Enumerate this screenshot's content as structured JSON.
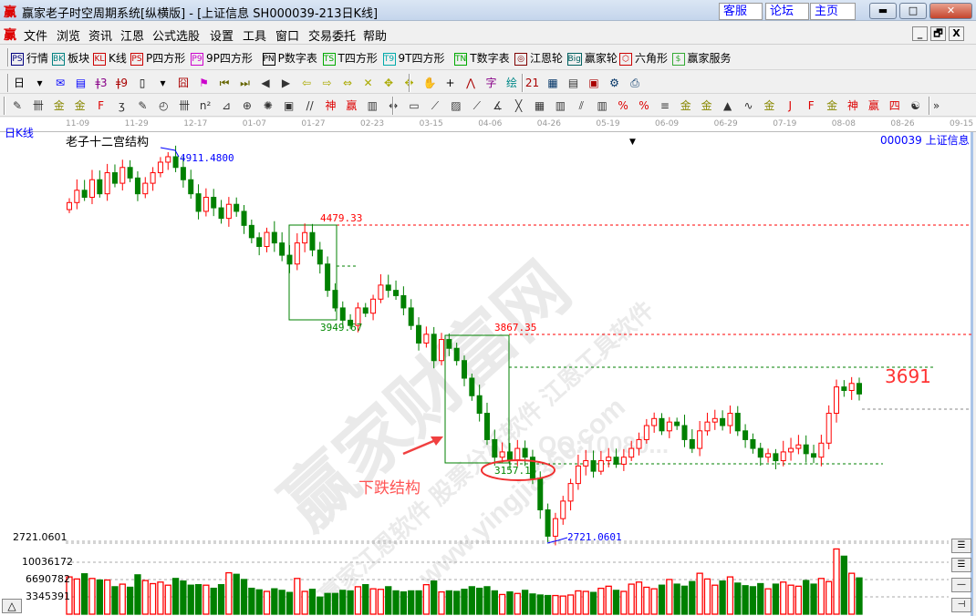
{
  "window": {
    "logo": "赢",
    "title": "赢家老子时空周期系统[纵横版] - [上证信息  SH000039-213日K线]",
    "links": [
      "客服",
      "论坛",
      "主页"
    ],
    "controls": [
      "minimize",
      "maximize",
      "close"
    ]
  },
  "menu": {
    "logo": "赢",
    "items": [
      "文件",
      "浏览",
      "资讯",
      "江恩",
      "公式选股",
      "设置",
      "工具",
      "窗口",
      "交易委托",
      "帮助"
    ],
    "mdi": [
      "_",
      "🗗",
      "X"
    ]
  },
  "toolbar1": [
    {
      "icon": "PS",
      "label": "行情",
      "color": "#000080"
    },
    {
      "icon": "BK",
      "label": "板块",
      "color": "#008080"
    },
    {
      "icon": "KL",
      "label": "K线",
      "color": "#cc0000"
    },
    {
      "icon": "PS",
      "label": "P四方形",
      "color": "#cc0000"
    },
    {
      "icon": "P9",
      "label": "9P四方形",
      "color": "#cc00cc"
    },
    {
      "icon": "PN",
      "label": "P数字表",
      "color": "#000000"
    },
    {
      "icon": "TS",
      "label": "T四方形",
      "color": "#00aa00"
    },
    {
      "icon": "T9",
      "label": "9T四方形",
      "color": "#00aaaa"
    },
    {
      "icon": "TN",
      "label": "T数字表",
      "color": "#00aa00"
    },
    {
      "icon": "◎",
      "label": "江恩轮",
      "color": "#800000"
    },
    {
      "icon": "Big",
      "label": "赢家轮",
      "color": "#006060"
    },
    {
      "icon": "⬡",
      "label": "六角形",
      "color": "#cc0000"
    },
    {
      "icon": "$",
      "label": "赢家服务",
      "color": "#33aa33"
    }
  ],
  "toolbar2_icons": [
    "日",
    "▾",
    "✉",
    "▤",
    "ǂ3",
    "ǂ9",
    "▯",
    "▾",
    "囧",
    "⚑",
    "⏮",
    "⏭",
    "◀",
    "▶",
    "⇦",
    "⇨",
    "⇔",
    "✕",
    "✥",
    "✥",
    "✋",
    "+",
    "⋀",
    "字",
    "绘",
    "21",
    "▦",
    "▤",
    "▣",
    "⚙",
    "⎙"
  ],
  "toolbar3_icons": [
    "✎",
    "卌",
    "金",
    "金",
    "F",
    "ʒ",
    "✎",
    "◴",
    "卌",
    "n²",
    "⊿",
    "⊕",
    "✺",
    "▣",
    "//",
    "神",
    "赢",
    "▥",
    "↔",
    "▭",
    "⟋",
    "▨",
    "⟋",
    "∡",
    "╳",
    "▦",
    "▥",
    "⫽",
    "▥",
    "%",
    "%",
    "≡",
    "金",
    "金",
    "▲",
    "∿",
    "金",
    "J",
    "F",
    "金",
    "神",
    "赢",
    "四",
    "☯",
    "»"
  ],
  "date_axis": [
    "11-09",
    "11-29",
    "12-17",
    "01-07",
    "01-27",
    "02-23",
    "03-15",
    "04-06",
    "04-26",
    "05-19",
    "06-09",
    "06-29",
    "07-19",
    "08-08",
    "08-26",
    "09-15"
  ],
  "chart_header": {
    "period": "日K线",
    "indicator": "老子十二宫结构",
    "marker": "▼",
    "symbol": "000039  上证信息"
  },
  "annotations": {
    "high": "4911.4800",
    "box1_top": "4479.33",
    "box1_bottom": "3949.67",
    "box2_top": "3867.35",
    "box2_bottom": "3157.15",
    "low": "2721.0601",
    "target": "3691",
    "label": "下跌结构"
  },
  "watermark": {
    "main": "赢家财富网",
    "line1": "赢家江恩软件 股票分析软件 江恩工具软件",
    "line2": "www.yingjia360.com",
    "line3": "QQ:10080..."
  },
  "volume_axis": {
    "top": "2721.0601",
    "ticks": [
      "10036172",
      "6690782",
      "3345391"
    ]
  },
  "colors": {
    "up": "#ff0000",
    "down": "#008000",
    "box": "#008000",
    "level_red": "#ff0000",
    "level_green": "#008000",
    "low_line": "#0000ff",
    "target": "#ff3333"
  },
  "side_buttons": [
    "☰",
    "☰",
    "—",
    "⊣"
  ],
  "chart_data": {
    "type": "candlestick",
    "title": "",
    "price_range": [
      2721.06,
      4911.48
    ],
    "closes": [
      4650,
      4720,
      4680,
      4780,
      4700,
      4820,
      4760,
      4850,
      4790,
      4700,
      4760,
      4820,
      4880,
      4911,
      4850,
      4780,
      4700,
      4600,
      4680,
      4620,
      4560,
      4640,
      4600,
      4520,
      4450,
      4400,
      4480,
      4420,
      4350,
      4300,
      4420,
      4479,
      4380,
      4300,
      4150,
      4050,
      3980,
      3950,
      4050,
      4020,
      4100,
      4180,
      4150,
      4120,
      4050,
      3950,
      3850,
      3900,
      3750,
      3870,
      3820,
      3750,
      3650,
      3550,
      3450,
      3300,
      3200,
      3230,
      3180,
      3250,
      3200,
      3080,
      2900,
      2750,
      2850,
      2950,
      3050,
      3150,
      3180,
      3120,
      3180,
      3200,
      3160,
      3200,
      3250,
      3300,
      3380,
      3420,
      3350,
      3400,
      3380,
      3300,
      3250,
      3350,
      3400,
      3420,
      3380,
      3450,
      3350,
      3300,
      3250,
      3200,
      3220,
      3180,
      3230,
      3250,
      3270,
      3220,
      3200,
      3280,
      3450,
      3600,
      3580,
      3620,
      3560
    ],
    "volumes": [
      7200000,
      6800000,
      7800000,
      6900000,
      6600000,
      6600000,
      5300000,
      5800000,
      5200000,
      7600000,
      6500000,
      5900000,
      6200000,
      5600000,
      6900000,
      6400000,
      5600000,
      5700000,
      5600000,
      5000000,
      5700000,
      8000000,
      7700000,
      6700000,
      5000000,
      4700000,
      4400000,
      4900000,
      4600000,
      4200000,
      6900000,
      4400000,
      4800000,
      3300000,
      4000000,
      4000000,
      4600000,
      4500000,
      5300000,
      5700000,
      4900000,
      4800000,
      5300000,
      4500000,
      4300000,
      4500000,
      4500000,
      5700000,
      6400000,
      4300000,
      4500000,
      4400000,
      4800000,
      5300000,
      5000000,
      5300000,
      4500000,
      3800000,
      4300000,
      4000000,
      4600000,
      3900000,
      3700000,
      3600000,
      3600000,
      3500000,
      3700000,
      4500000,
      4400000,
      4200000,
      5000000,
      5400000,
      4600000,
      4400000,
      5800000,
      6200000,
      5200000,
      4900000,
      5600000,
      6700000,
      5800000,
      5400000,
      6300000,
      7900000,
      6800000,
      5600000,
      6400000,
      7200000,
      6000000,
      5500000,
      5300000,
      5900000,
      4900000,
      5800000,
      6200000,
      5600000,
      5400000,
      6500000,
      5800000,
      6900000,
      6300000,
      12600000,
      11200000,
      7900000,
      7000000
    ]
  }
}
